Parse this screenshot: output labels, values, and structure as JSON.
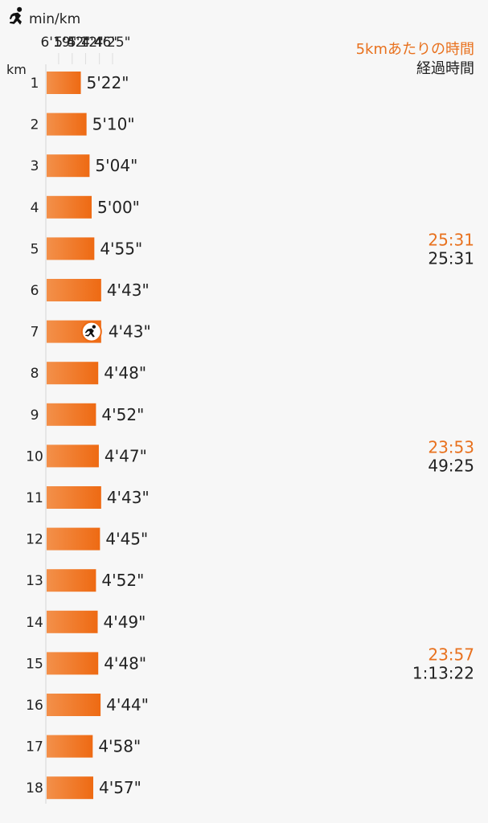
{
  "header": {
    "unit": "min/km",
    "runner_icon": "runner-icon"
  },
  "legend": {
    "split_label": "5kmあたりの時間",
    "elapsed_label": "経過時間",
    "split_color": "#e8711e",
    "elapsed_color": "#222222"
  },
  "colors": {
    "bar_start": "#f3904a",
    "bar_end": "#ee6a13",
    "marker": "#ee6a13",
    "grid": "#dddddd"
  },
  "chart_data": {
    "type": "bar",
    "orientation": "horizontal",
    "xlabel": "min/km",
    "ylabel": "km",
    "x_axis_ticks": [
      "6'19\"",
      "5'42\"",
      "5'12\"",
      "4'46\"",
      "4'25\""
    ],
    "x_axis_ticks_sec_per_km": [
      379,
      342,
      312,
      286,
      265
    ],
    "x_axis_scale": "reciprocal (speed)",
    "categories": [
      "1",
      "2",
      "3",
      "4",
      "5",
      "6",
      "7",
      "8",
      "9",
      "10",
      "11",
      "12",
      "13",
      "14",
      "15",
      "16",
      "17",
      "18"
    ],
    "values_sec_per_km": [
      322,
      310,
      304,
      300,
      295,
      283,
      283,
      288,
      292,
      287,
      283,
      285,
      292,
      289,
      288,
      284,
      298,
      297
    ],
    "value_labels": [
      "5'22\"",
      "5'10\"",
      "5'04\"",
      "5'00\"",
      "4'55\"",
      "4'43\"",
      "4'43\"",
      "4'48\"",
      "4'52\"",
      "4'47\"",
      "4'43\"",
      "4'45\"",
      "4'52\"",
      "4'49\"",
      "4'48\"",
      "4'44\"",
      "4'58\"",
      "4'57\""
    ],
    "marker_km": "7",
    "splits": [
      {
        "km": "5",
        "split_time": "25:31",
        "elapsed_time": "25:31"
      },
      {
        "km": "10",
        "split_time": "23:53",
        "elapsed_time": "49:25"
      },
      {
        "km": "15",
        "split_time": "23:57",
        "elapsed_time": "1:13:22"
      }
    ]
  }
}
